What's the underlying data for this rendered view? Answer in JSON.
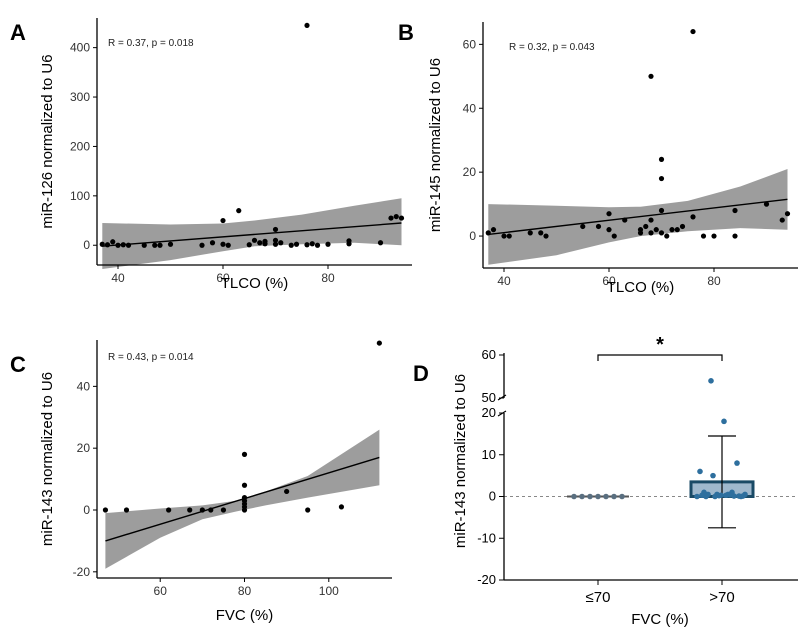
{
  "chart_data": [
    {
      "type": "scatter",
      "panel": "A",
      "stat_label": "R = 0.37, p = 0.018",
      "xlabel": "TLCO (%)",
      "ylabel": "miR-126 normalized to U6",
      "xlim": [
        36,
        96
      ],
      "ylim": [
        -40,
        460
      ],
      "xticks": [
        40,
        60,
        80
      ],
      "yticks": [
        0,
        100,
        200,
        300,
        400
      ],
      "points": [
        [
          37,
          2
        ],
        [
          38,
          1
        ],
        [
          39,
          7
        ],
        [
          40,
          0
        ],
        [
          41,
          1
        ],
        [
          42,
          0
        ],
        [
          45,
          0
        ],
        [
          47,
          0
        ],
        [
          48,
          0
        ],
        [
          50,
          2
        ],
        [
          56,
          0
        ],
        [
          58,
          5
        ],
        [
          60,
          50
        ],
        [
          60,
          2
        ],
        [
          61,
          0
        ],
        [
          63,
          70
        ],
        [
          65,
          1
        ],
        [
          66,
          10
        ],
        [
          67,
          5
        ],
        [
          68,
          8
        ],
        [
          68,
          3
        ],
        [
          70,
          10
        ],
        [
          70,
          32
        ],
        [
          70,
          2
        ],
        [
          71,
          5
        ],
        [
          73,
          0
        ],
        [
          74,
          2
        ],
        [
          76,
          445
        ],
        [
          76,
          1
        ],
        [
          77,
          3
        ],
        [
          78,
          0
        ],
        [
          80,
          2
        ],
        [
          84,
          3
        ],
        [
          84,
          9
        ],
        [
          90,
          5
        ],
        [
          92,
          55
        ],
        [
          93,
          58
        ],
        [
          94,
          55
        ]
      ],
      "fit": {
        "x": [
          37,
          94
        ],
        "y": [
          -2,
          45
        ]
      },
      "band": {
        "x": [
          37,
          50,
          60,
          66,
          75,
          85,
          94
        ],
        "upper": [
          45,
          42,
          44,
          50,
          62,
          80,
          95
        ],
        "lower": [
          -48,
          -30,
          -12,
          -2,
          2,
          5,
          0
        ]
      }
    },
    {
      "type": "scatter",
      "panel": "B",
      "stat_label": "R = 0.32, p = 0.043",
      "xlabel": "TLCO (%)",
      "ylabel": "miR-145 normalized to U6",
      "xlim": [
        36,
        96
      ],
      "ylim": [
        -10,
        67
      ],
      "xticks": [
        40,
        60,
        80
      ],
      "yticks": [
        0,
        20,
        40,
        60
      ],
      "points": [
        [
          37,
          1
        ],
        [
          38,
          2
        ],
        [
          40,
          0
        ],
        [
          41,
          0
        ],
        [
          45,
          1
        ],
        [
          47,
          1
        ],
        [
          48,
          0
        ],
        [
          55,
          3
        ],
        [
          58,
          3
        ],
        [
          60,
          7
        ],
        [
          60,
          2
        ],
        [
          61,
          0
        ],
        [
          63,
          5
        ],
        [
          66,
          2
        ],
        [
          66,
          1
        ],
        [
          67,
          3
        ],
        [
          68,
          5
        ],
        [
          68,
          50
        ],
        [
          68,
          1
        ],
        [
          69,
          2
        ],
        [
          70,
          24
        ],
        [
          70,
          18
        ],
        [
          70,
          8
        ],
        [
          70,
          1
        ],
        [
          71,
          0
        ],
        [
          72,
          2
        ],
        [
          73,
          2
        ],
        [
          74,
          3
        ],
        [
          76,
          64
        ],
        [
          76,
          6
        ],
        [
          78,
          0
        ],
        [
          80,
          0
        ],
        [
          84,
          8
        ],
        [
          84,
          0
        ],
        [
          90,
          10
        ],
        [
          93,
          5
        ],
        [
          94,
          7
        ]
      ],
      "fit": {
        "x": [
          37,
          94
        ],
        "y": [
          0.5,
          11.5
        ]
      },
      "band": {
        "x": [
          37,
          50,
          60,
          66,
          75,
          85,
          94
        ],
        "upper": [
          10,
          9.5,
          9,
          9.2,
          11,
          15.5,
          21
        ],
        "lower": [
          -9,
          -6,
          -2,
          0,
          1.5,
          2.5,
          2
        ]
      }
    },
    {
      "type": "scatter",
      "panel": "C",
      "stat_label": "R = 0.43, p = 0.014",
      "xlabel": "FVC (%)",
      "ylabel": "miR-143 normalized to U6",
      "xlim": [
        45,
        115
      ],
      "ylim": [
        -22,
        55
      ],
      "xticks": [
        60,
        80,
        100
      ],
      "yticks": [
        -20,
        0,
        20,
        40
      ],
      "points": [
        [
          47,
          0
        ],
        [
          52,
          0
        ],
        [
          62,
          0
        ],
        [
          67,
          0
        ],
        [
          70,
          0
        ],
        [
          72,
          0
        ],
        [
          75,
          0
        ],
        [
          80,
          18
        ],
        [
          80,
          8
        ],
        [
          80,
          4
        ],
        [
          80,
          3
        ],
        [
          80,
          2
        ],
        [
          80,
          1
        ],
        [
          80,
          0
        ],
        [
          90,
          6
        ],
        [
          95,
          0
        ],
        [
          103,
          1
        ],
        [
          112,
          54
        ]
      ],
      "fit": {
        "x": [
          47,
          112
        ],
        "y": [
          -10,
          17
        ]
      },
      "band": {
        "x": [
          47,
          60,
          70,
          78,
          85,
          95,
          112
        ],
        "upper": [
          -1,
          0.5,
          1.5,
          3,
          6,
          11,
          26
        ],
        "lower": [
          -19,
          -9,
          -3,
          -0.5,
          1.5,
          4,
          8
        ]
      }
    },
    {
      "type": "bar",
      "panel": "D",
      "xlabel": "FVC (%)",
      "ylabel": "miR-143 normalized to U6",
      "categories": [
        "≤70",
        ">70"
      ],
      "values": [
        0,
        3.5
      ],
      "error_bars": {
        "upper": [
          0,
          14.5
        ],
        "lower": [
          0,
          -7.5
        ]
      },
      "yticks_lower": [
        -20,
        -10,
        0,
        10,
        20
      ],
      "yticks_upper": [
        50,
        60
      ],
      "axis_break": [
        20,
        50
      ],
      "significance": "*",
      "group_points": [
        [
          0,
          0,
          0,
          0,
          0,
          0,
          0
        ],
        [
          0,
          0.1,
          0.3,
          0.5,
          0.5,
          1,
          0.2,
          0,
          0.1,
          0.4,
          0.5,
          1,
          0,
          0.5,
          0,
          0.3,
          0.1,
          0.3,
          5,
          6,
          8,
          18,
          54
        ]
      ],
      "colors": {
        "bar2_fill": "#9fb8cd",
        "bar2_edge": "#1a4a66",
        "points": "#2e6f9e"
      }
    }
  ]
}
